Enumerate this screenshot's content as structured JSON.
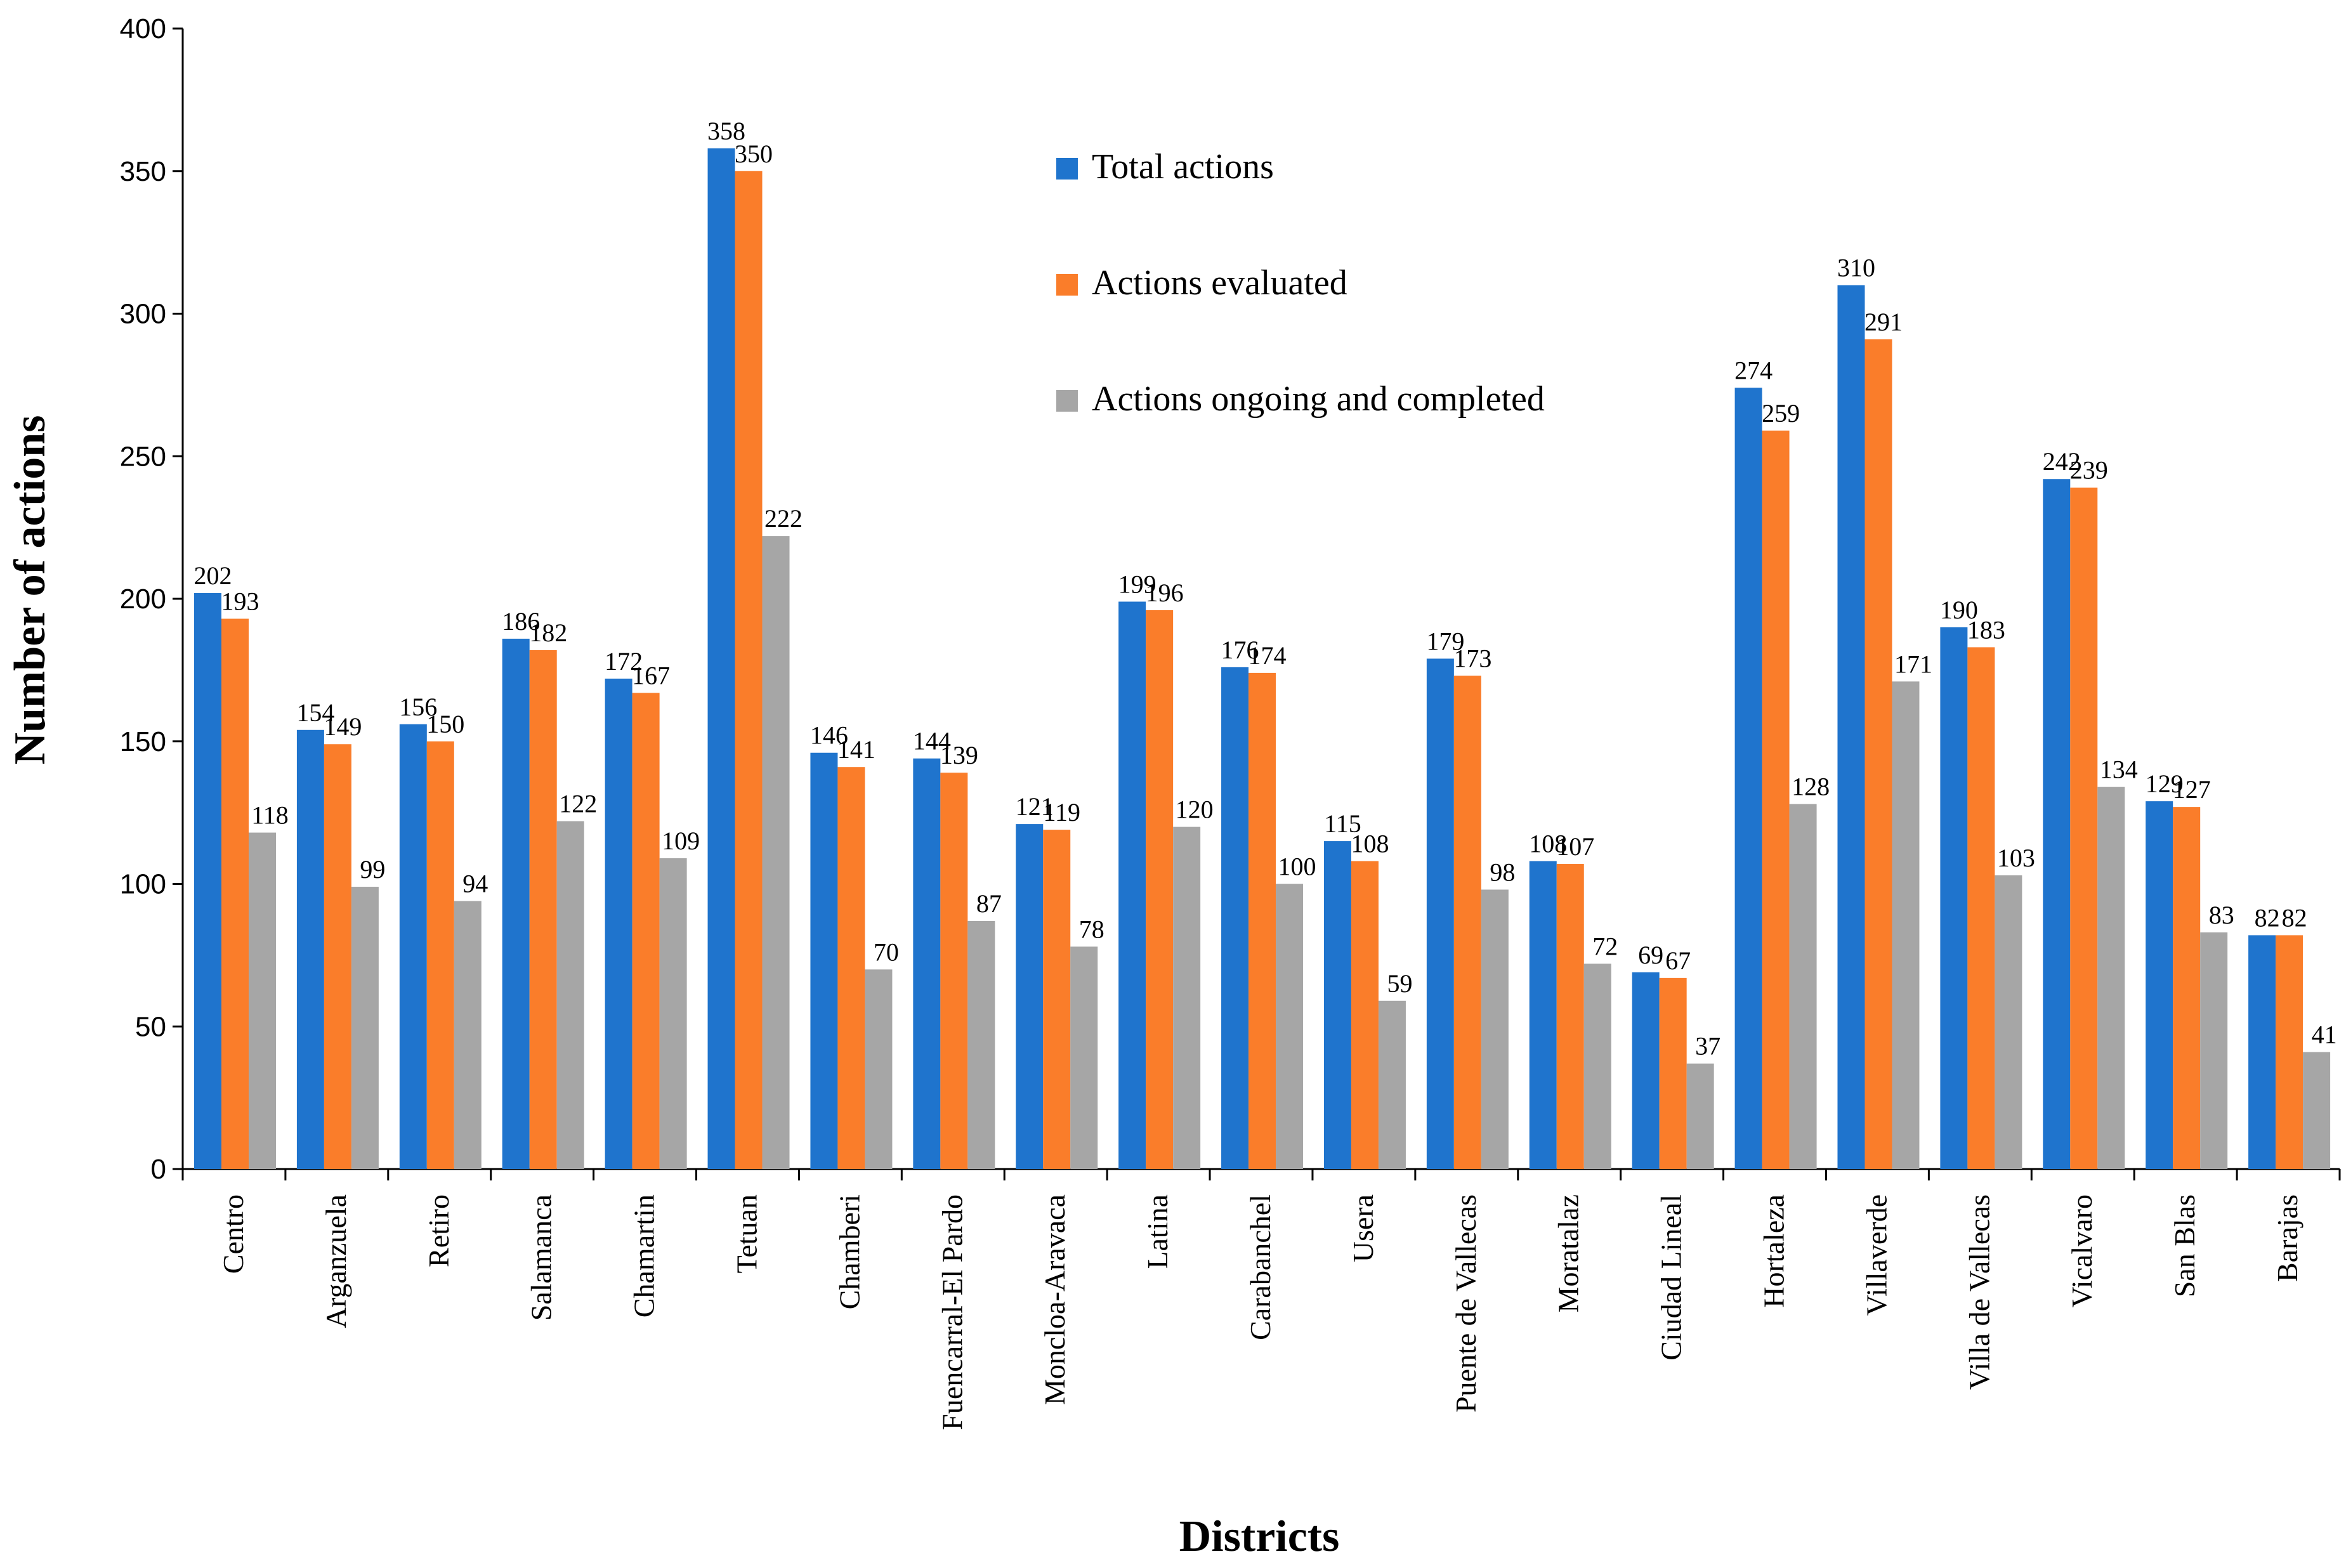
{
  "chart_data": {
    "type": "bar",
    "title": "",
    "xlabel": "Districts",
    "ylabel": "Number of actions",
    "ylim": [
      0,
      400
    ],
    "yticks": [
      0,
      50,
      100,
      150,
      200,
      250,
      300,
      350,
      400
    ],
    "grid": false,
    "legend_position": "top-center",
    "categories": [
      "Centro",
      "Arganzuela",
      "Retiro",
      "Salamanca",
      "Chamartin",
      "Tetuan",
      "Chamberi",
      "Fuencarral-El Pardo",
      "Moncloa-Aravaca",
      "Latina",
      "Carabanchel",
      "Usera",
      "Puente de Vallecas",
      "Moratalaz",
      "Ciudad Lineal",
      "Hortaleza",
      "Villaverde",
      "Villa de Vallecas",
      "Vicalvaro",
      "San Blas",
      "Barajas"
    ],
    "series": [
      {
        "name": "Total actions",
        "color": "#1f74cd",
        "values": [
          202,
          154,
          156,
          186,
          172,
          358,
          146,
          144,
          121,
          199,
          176,
          115,
          179,
          108,
          69,
          274,
          310,
          190,
          242,
          129,
          82
        ]
      },
      {
        "name": "Actions evaluated",
        "color": "#fa7d2a",
        "values": [
          193,
          149,
          150,
          182,
          167,
          350,
          141,
          139,
          119,
          196,
          174,
          108,
          173,
          107,
          67,
          259,
          291,
          183,
          239,
          127,
          82
        ]
      },
      {
        "name": "Actions ongoing and completed",
        "color": "#a6a6a6",
        "values": [
          118,
          99,
          94,
          122,
          109,
          222,
          70,
          87,
          78,
          120,
          100,
          59,
          98,
          72,
          37,
          128,
          171,
          103,
          134,
          83,
          41
        ]
      }
    ]
  }
}
